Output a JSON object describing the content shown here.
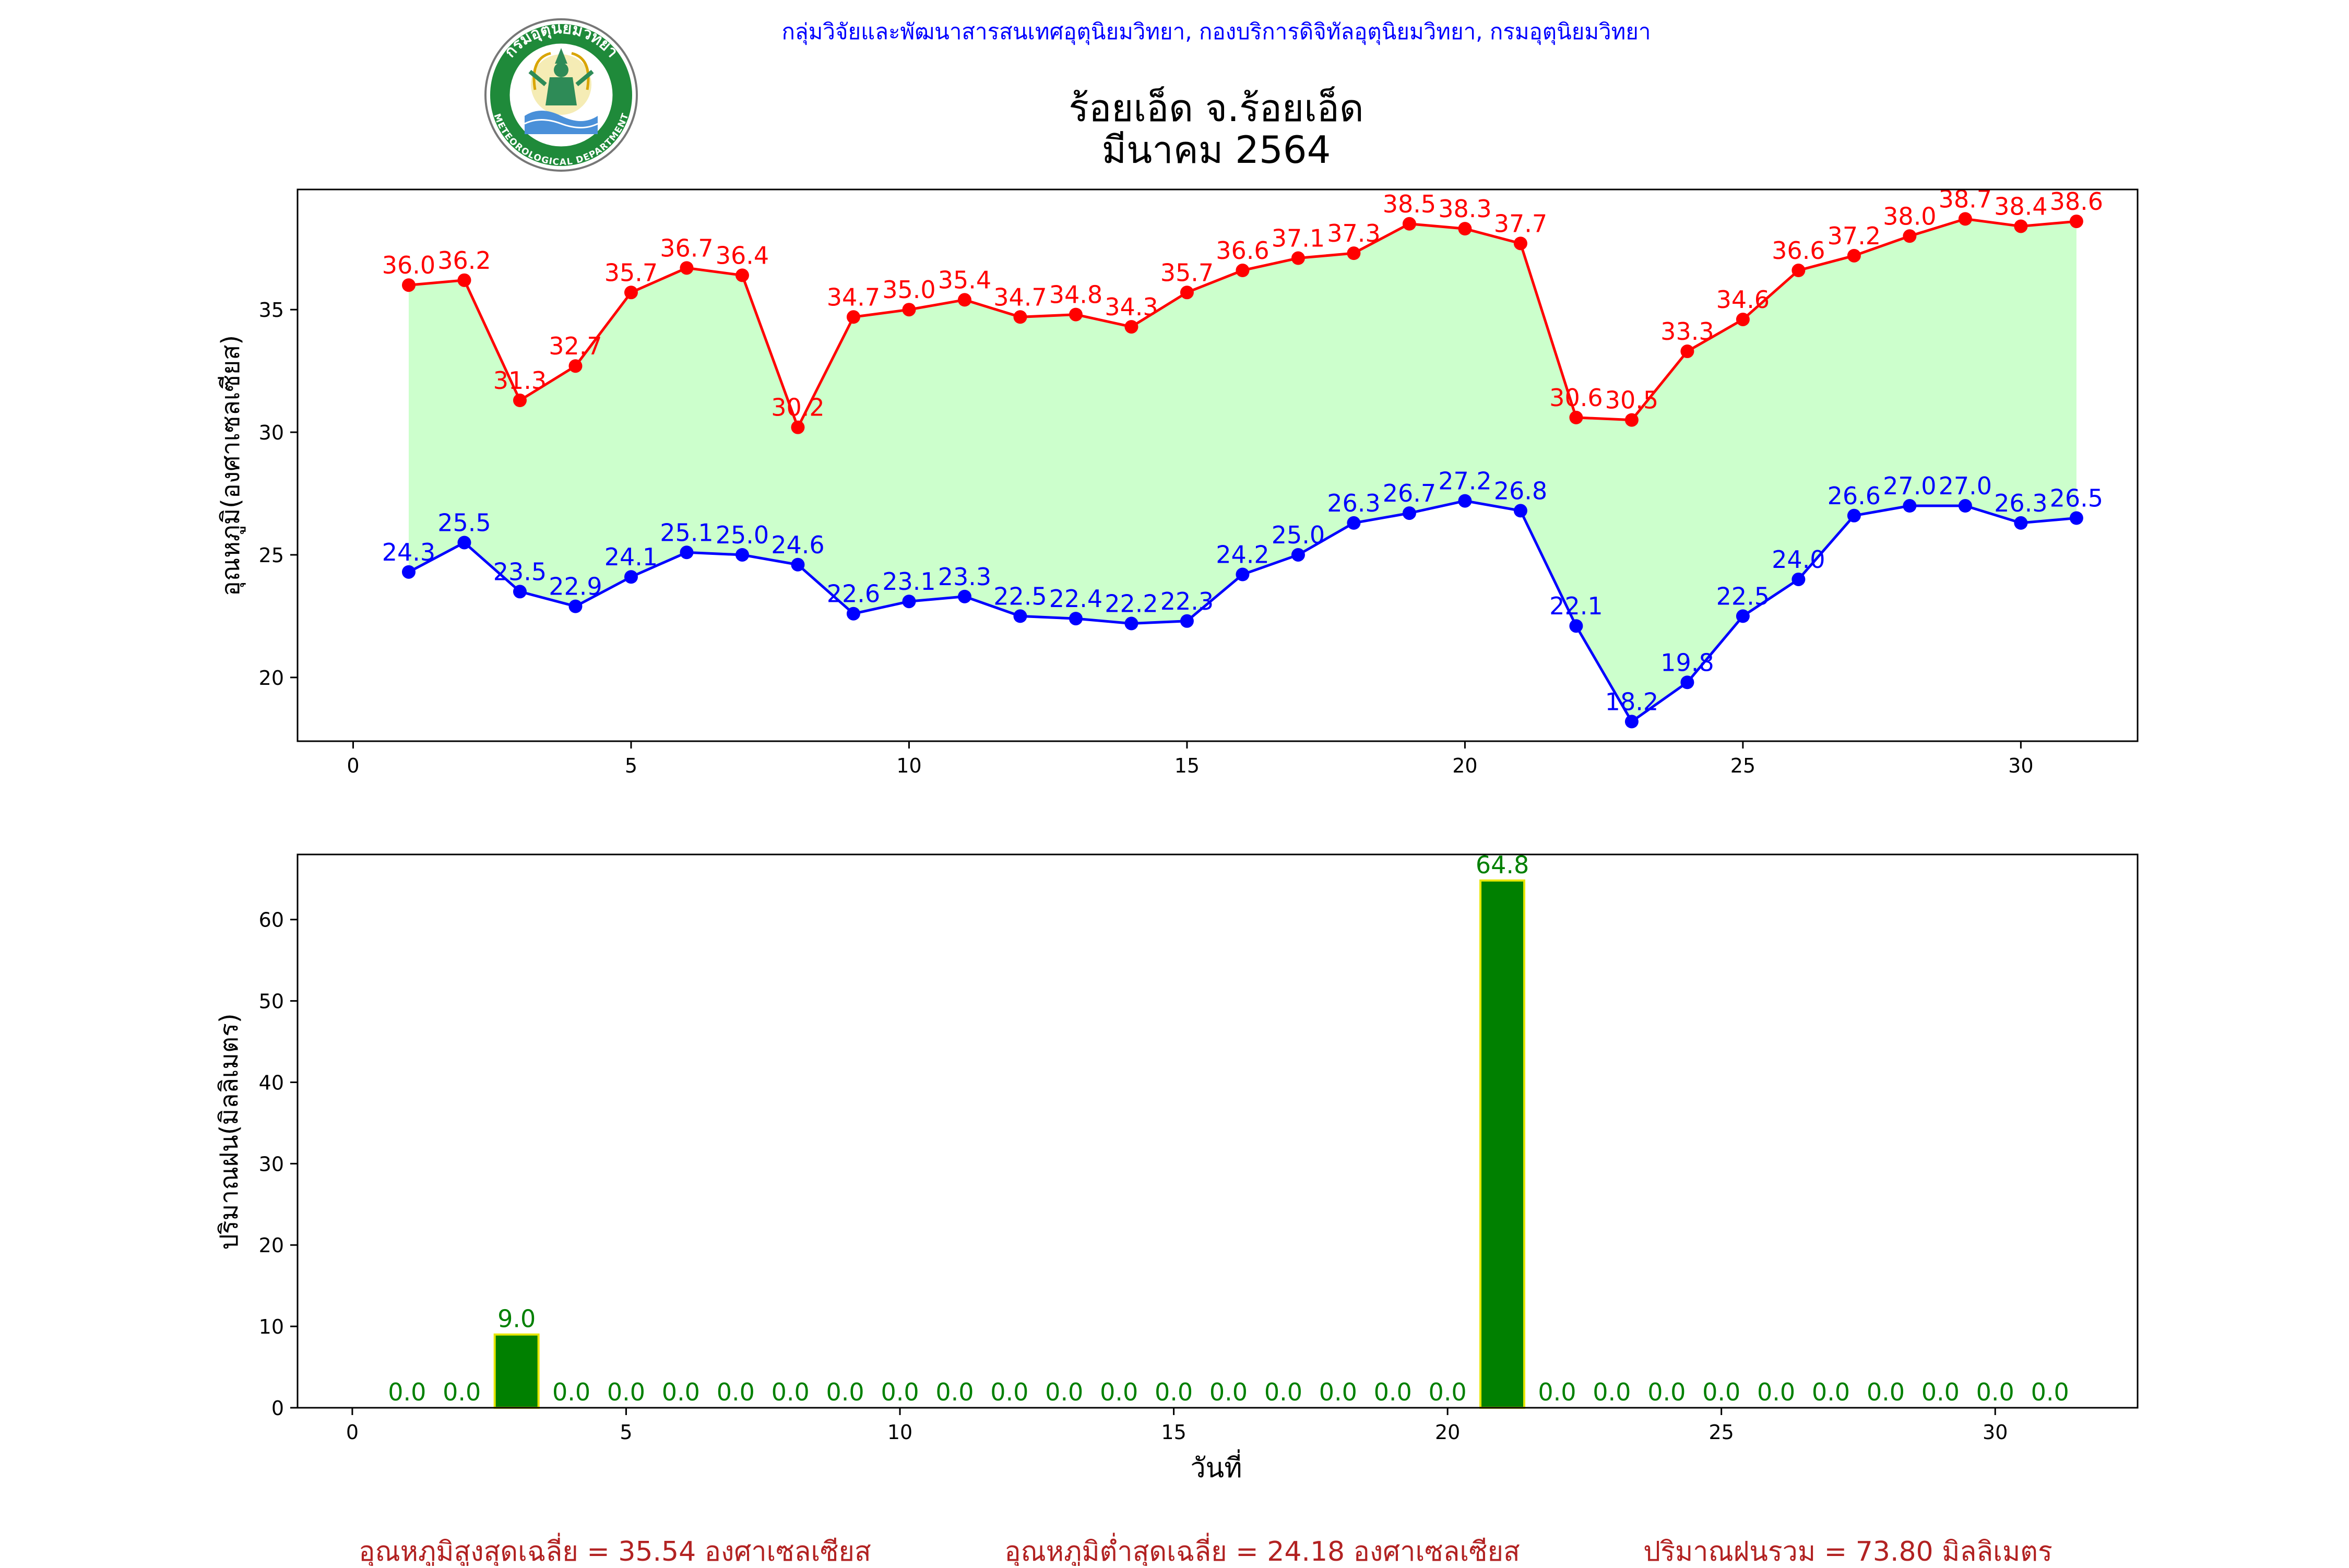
{
  "header": {
    "org_line": "กลุ่มวิจัยและพัฒนาสารสนเทศอุตุนิยมวิทยา, กองบริการดิจิทัลอุตุนิยมวิทยา, กรมอุตุนิยมวิทยา",
    "logo_name": "กรมอุตุนิยมวิทยา",
    "logo_text_top": "กรมอุตุนิยมวิทยา",
    "logo_text_bottom": "METEOROLOGICAL DEPARTMENT",
    "title_line1": "ร้อยเอ็ด จ.ร้อยเอ็ด",
    "title_line2": "มีนาคม 2564"
  },
  "colors": {
    "max_line": "#ff0000",
    "min_line": "#0000ff",
    "fill": "#ccffcc",
    "rain_bar": "#008000",
    "rain_edge": "#e6e600",
    "rain_label": "#008000",
    "header_text": "#0000ff",
    "summary_text": "#b22222"
  },
  "chart_data": [
    {
      "type": "line",
      "ylabel": "อุณหภูมิ(องศาเซลเซียส)",
      "xlabel": "",
      "xlim": [
        -1,
        32.1
      ],
      "ylim": [
        17.4,
        39.9
      ],
      "xticks": [
        0,
        5,
        10,
        15,
        20,
        25,
        30
      ],
      "yticks": [
        20,
        25,
        30,
        35
      ],
      "grid": false,
      "x": [
        1,
        2,
        3,
        4,
        5,
        6,
        7,
        8,
        9,
        10,
        11,
        12,
        13,
        14,
        15,
        16,
        17,
        18,
        19,
        20,
        21,
        22,
        23,
        24,
        25,
        26,
        27,
        28,
        29,
        30,
        31
      ],
      "series": [
        {
          "key": "max",
          "values": [
            36.0,
            36.2,
            31.3,
            32.7,
            35.7,
            36.7,
            36.4,
            30.2,
            34.7,
            35.0,
            35.4,
            34.7,
            34.8,
            34.3,
            35.7,
            36.6,
            37.1,
            37.3,
            38.5,
            38.3,
            37.7,
            30.6,
            30.5,
            33.3,
            34.6,
            36.6,
            37.2,
            38.0,
            38.7,
            38.4,
            38.6
          ],
          "labels": [
            "36.0",
            "36.2",
            "31.3",
            "32.7",
            "35.7",
            "36.7",
            "36.4",
            "30.2",
            "34.7",
            "35.0",
            "35.4",
            "34.7",
            "34.8",
            "34.3",
            "35.7",
            "36.6",
            "37.1",
            "37.3",
            "38.5",
            "38.3",
            "37.7",
            "30.6",
            "30.5",
            "33.3",
            "34.6",
            "36.6",
            "37.2",
            "38.0",
            "38.7",
            "38.4",
            "38.6"
          ]
        },
        {
          "key": "min",
          "values": [
            24.3,
            25.5,
            23.5,
            22.9,
            24.1,
            25.1,
            25.0,
            24.6,
            22.6,
            23.1,
            23.3,
            22.5,
            22.4,
            22.2,
            22.3,
            24.2,
            25.0,
            26.3,
            26.7,
            27.2,
            26.8,
            22.1,
            18.2,
            19.8,
            22.5,
            24.0,
            26.6,
            27.0,
            27.0,
            26.3,
            26.5
          ],
          "labels": [
            "24.3",
            "25.5",
            "23.5",
            "22.9",
            "24.1",
            "25.1",
            "25.0",
            "24.6",
            "22.6",
            "23.1",
            "23.3",
            "22.5",
            "22.4",
            "22.2",
            "22.3",
            "24.2",
            "25.0",
            "26.3",
            "26.7",
            "27.2",
            "26.8",
            "22.1",
            "18.2",
            "19.8",
            "22.5",
            "24.0",
            "26.6",
            "27.0",
            "27.0",
            "26.3",
            "26.5"
          ]
        }
      ]
    },
    {
      "type": "bar",
      "ylabel": "ปริมาณฝน(มิลลิเมตร)",
      "xlabel": "วันที่",
      "xlim": [
        -1,
        32.6
      ],
      "ylim": [
        0,
        68.0
      ],
      "xticks": [
        0,
        5,
        10,
        15,
        20,
        25,
        30
      ],
      "yticks": [
        0,
        10,
        20,
        30,
        40,
        50,
        60
      ],
      "grid": false,
      "x": [
        1,
        2,
        3,
        4,
        5,
        6,
        7,
        8,
        9,
        10,
        11,
        12,
        13,
        14,
        15,
        16,
        17,
        18,
        19,
        20,
        21,
        22,
        23,
        24,
        25,
        26,
        27,
        28,
        29,
        30,
        31
      ],
      "values": [
        0.0,
        0.0,
        9.0,
        0.0,
        0.0,
        0.0,
        0.0,
        0.0,
        0.0,
        0.0,
        0.0,
        0.0,
        0.0,
        0.0,
        0.0,
        0.0,
        0.0,
        0.0,
        0.0,
        0.0,
        64.8,
        0.0,
        0.0,
        0.0,
        0.0,
        0.0,
        0.0,
        0.0,
        0.0,
        0.0,
        0.0
      ],
      "labels": [
        "0.0",
        "0.0",
        "9.0",
        "0.0",
        "0.0",
        "0.0",
        "0.0",
        "0.0",
        "0.0",
        "0.0",
        "0.0",
        "0.0",
        "0.0",
        "0.0",
        "0.0",
        "0.0",
        "0.0",
        "0.0",
        "0.0",
        "0.0",
        "64.8",
        "0.0",
        "0.0",
        "0.0",
        "0.0",
        "0.0",
        "0.0",
        "0.0",
        "0.0",
        "0.0",
        "0.0"
      ]
    }
  ],
  "summary": {
    "avg_max": "อุณหภูมิสูงสุดเฉลี่ย = 35.54 องศาเซลเซียส",
    "avg_min": "อุณหภูมิต่ำสุดเฉลี่ย = 24.18 องศาเซลเซียส",
    "total_rain": "ปริมาณฝนรวม = 73.80 มิลลิเมตร"
  }
}
